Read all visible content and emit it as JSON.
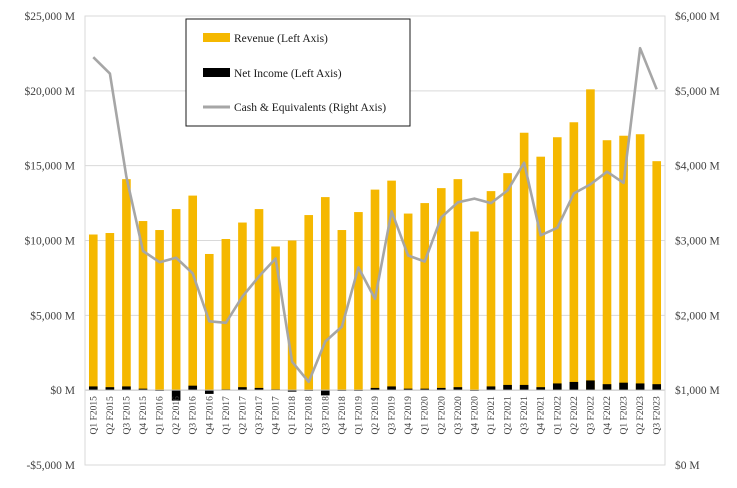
{
  "chart_data": {
    "type": "bar",
    "categories": [
      "Q1 F2015",
      "Q2 F2015",
      "Q3 F2015",
      "Q4 F2015",
      "Q1 F2016",
      "Q2 F2016",
      "Q3 F2016",
      "Q4 F2016",
      "Q1 F2017",
      "Q2 F2017",
      "Q3 F2017",
      "Q4 F2017",
      "Q1 F2018",
      "Q2 F2018",
      "Q3 F2018",
      "Q4 F2018",
      "Q1 F2019",
      "Q2 F2019",
      "Q3 F2019",
      "Q4 F2019",
      "Q1 F2020",
      "Q2 F2020",
      "Q3 F2020",
      "Q4 F2020",
      "Q1 F2021",
      "Q2 F2021",
      "Q3 F2021",
      "Q4 F2021",
      "Q1 F2022",
      "Q2 F2022",
      "Q3 F2022",
      "Q4 F2022",
      "Q1 F2023",
      "Q2 F2023",
      "Q3 F2023"
    ],
    "series": [
      {
        "name": "Revenue (Left Axis)",
        "type": "bar",
        "axis": "left",
        "color": "#F5B800",
        "values": [
          10400,
          10500,
          14100,
          11300,
          10700,
          12100,
          13000,
          9100,
          10100,
          11200,
          12100,
          9600,
          10000,
          11700,
          12900,
          10700,
          11900,
          13400,
          14000,
          11800,
          12500,
          13500,
          14100,
          10600,
          13300,
          14500,
          17200,
          15600,
          16900,
          17900,
          20100,
          16700,
          17000,
          17100,
          15300
        ]
      },
      {
        "name": "Net Income (Left Axis)",
        "type": "bar",
        "axis": "left",
        "color": "#000000",
        "values": [
          250,
          200,
          250,
          100,
          -50,
          -700,
          300,
          -250,
          50,
          200,
          150,
          50,
          -100,
          -50,
          -350,
          -50,
          -50,
          150,
          250,
          100,
          100,
          150,
          200,
          -50,
          250,
          350,
          350,
          200,
          450,
          550,
          650,
          400,
          500,
          450,
          400
        ]
      },
      {
        "name": "Cash & Equivalents (Right Axis)",
        "type": "line",
        "axis": "right",
        "color": "#A6A6A6",
        "values": [
          5450,
          5230,
          3850,
          2860,
          2710,
          2770,
          2560,
          1920,
          1900,
          2250,
          2520,
          2760,
          1380,
          1110,
          1650,
          1850,
          2640,
          2220,
          3390,
          2800,
          2720,
          3310,
          3510,
          3560,
          3500,
          3670,
          4040,
          3070,
          3170,
          3630,
          3750,
          3920,
          3770,
          5570,
          5020
        ]
      }
    ],
    "y_left": {
      "min": -5000,
      "max": 25000,
      "ticks": [
        "-$5,000 M",
        "$0 M",
        "$5,000 M",
        "$10,000 M",
        "$15,000 M",
        "$20,000 M",
        "$25,000 M"
      ],
      "tick_values": [
        -5000,
        0,
        5000,
        10000,
        15000,
        20000,
        25000
      ]
    },
    "y_right": {
      "min": 0,
      "max": 6000,
      "ticks": [
        "$0 M",
        "$1,000 M",
        "$2,000 M",
        "$3,000 M",
        "$4,000 M",
        "$5,000 M",
        "$6,000 M"
      ],
      "tick_values": [
        0,
        1000,
        2000,
        3000,
        4000,
        5000,
        6000
      ]
    },
    "grid": true,
    "legend_position": "top-left"
  }
}
